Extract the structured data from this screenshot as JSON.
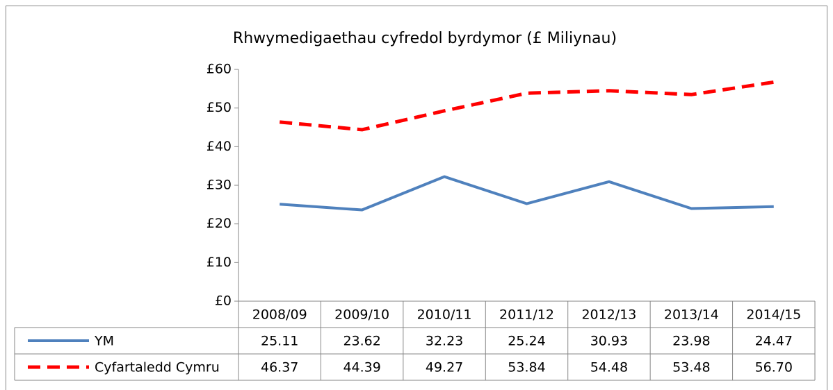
{
  "chart_data": {
    "type": "line",
    "title": "Rhwymedigaethau cyfredol byrdymor (£ Miliynau)",
    "categories": [
      "2008/09",
      "2009/10",
      "2010/11",
      "2011/12",
      "2012/13",
      "2013/14",
      "2014/15"
    ],
    "series": [
      {
        "name": "YM",
        "color": "#4f81bd",
        "dash": false,
        "values": [
          25.11,
          23.62,
          32.23,
          25.24,
          30.93,
          23.98,
          24.47
        ]
      },
      {
        "name": "Cyfartaledd Cymru",
        "color": "#ff0000",
        "dash": true,
        "values": [
          46.37,
          44.39,
          49.27,
          53.84,
          54.48,
          53.48,
          56.7
        ],
        "value_labels": [
          "46.37",
          "44.39",
          "49.27",
          "53.84",
          "54.48",
          "53.48",
          "56.70"
        ]
      }
    ],
    "ylim": [
      0,
      60
    ],
    "yticks": [
      {
        "value": 0,
        "label": "£0"
      },
      {
        "value": 10,
        "label": "£10"
      },
      {
        "value": 20,
        "label": "£20"
      },
      {
        "value": 30,
        "label": "£30"
      },
      {
        "value": 40,
        "label": "£40"
      },
      {
        "value": 50,
        "label": "£50"
      },
      {
        "value": 60,
        "label": "£60"
      }
    ],
    "data_table": true
  }
}
